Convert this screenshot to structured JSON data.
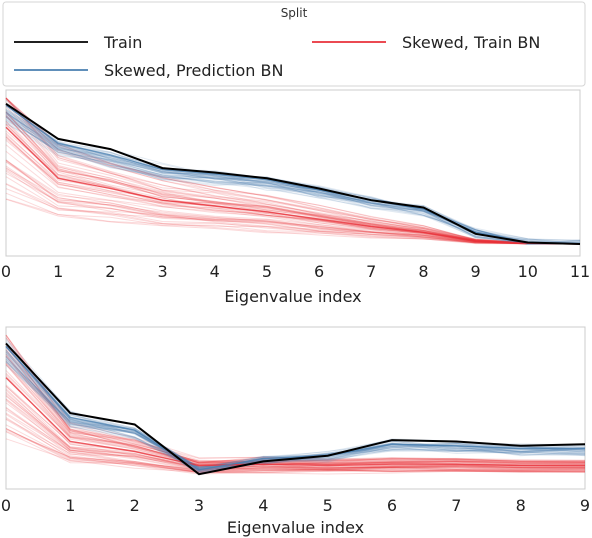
{
  "legend": {
    "title": "Split",
    "entries": [
      {
        "label": "Train",
        "color": "#000000"
      },
      {
        "label": "Skewed, Train BN",
        "color": "#e8313a"
      },
      {
        "label": "Skewed, Prediction BN",
        "color": "#4a7fb0"
      }
    ]
  },
  "colors": {
    "train": "#000000",
    "train_bn": "#e8313a",
    "pred_bn": "#4a7fb0",
    "frame": "#cccccc"
  },
  "chart_data": [
    {
      "type": "line",
      "xlabel": "Eigenvalue index",
      "ylabel": "",
      "x": [
        0,
        1,
        2,
        3,
        4,
        5,
        6,
        7,
        8,
        9,
        10,
        11
      ],
      "xlim": [
        0,
        11
      ],
      "ylim": [
        0,
        1
      ],
      "grid": false,
      "legend_position": "top",
      "series": [
        {
          "name": "Train",
          "values": [
            0.96,
            0.72,
            0.65,
            0.52,
            0.49,
            0.45,
            0.38,
            0.3,
            0.25,
            0.07,
            0.01,
            0.0
          ]
        },
        {
          "name": "Skewed, Prediction BN",
          "values": [
            0.95,
            0.69,
            0.61,
            0.51,
            0.48,
            0.44,
            0.37,
            0.3,
            0.24,
            0.08,
            0.01,
            0.0
          ]
        },
        {
          "name": "Skewed, Train BN",
          "values": [
            0.8,
            0.45,
            0.38,
            0.3,
            0.26,
            0.22,
            0.17,
            0.12,
            0.08,
            0.02,
            0.005,
            0.0
          ]
        }
      ]
    },
    {
      "type": "line",
      "xlabel": "Eigenvalue index",
      "ylabel": "",
      "x": [
        0,
        1,
        2,
        3,
        4,
        5,
        6,
        7,
        8,
        9
      ],
      "xlim": [
        0,
        9
      ],
      "ylim": [
        0,
        1
      ],
      "grid": false,
      "series": [
        {
          "name": "Train",
          "values": [
            0.94,
            0.45,
            0.37,
            0.02,
            0.11,
            0.15,
            0.26,
            0.25,
            0.22,
            0.23
          ]
        },
        {
          "name": "Skewed, Prediction BN",
          "values": [
            0.92,
            0.42,
            0.33,
            0.05,
            0.13,
            0.15,
            0.23,
            0.22,
            0.2,
            0.2
          ]
        },
        {
          "name": "Skewed, Train BN",
          "values": [
            0.7,
            0.25,
            0.18,
            0.08,
            0.09,
            0.08,
            0.09,
            0.09,
            0.08,
            0.08
          ]
        }
      ]
    }
  ]
}
